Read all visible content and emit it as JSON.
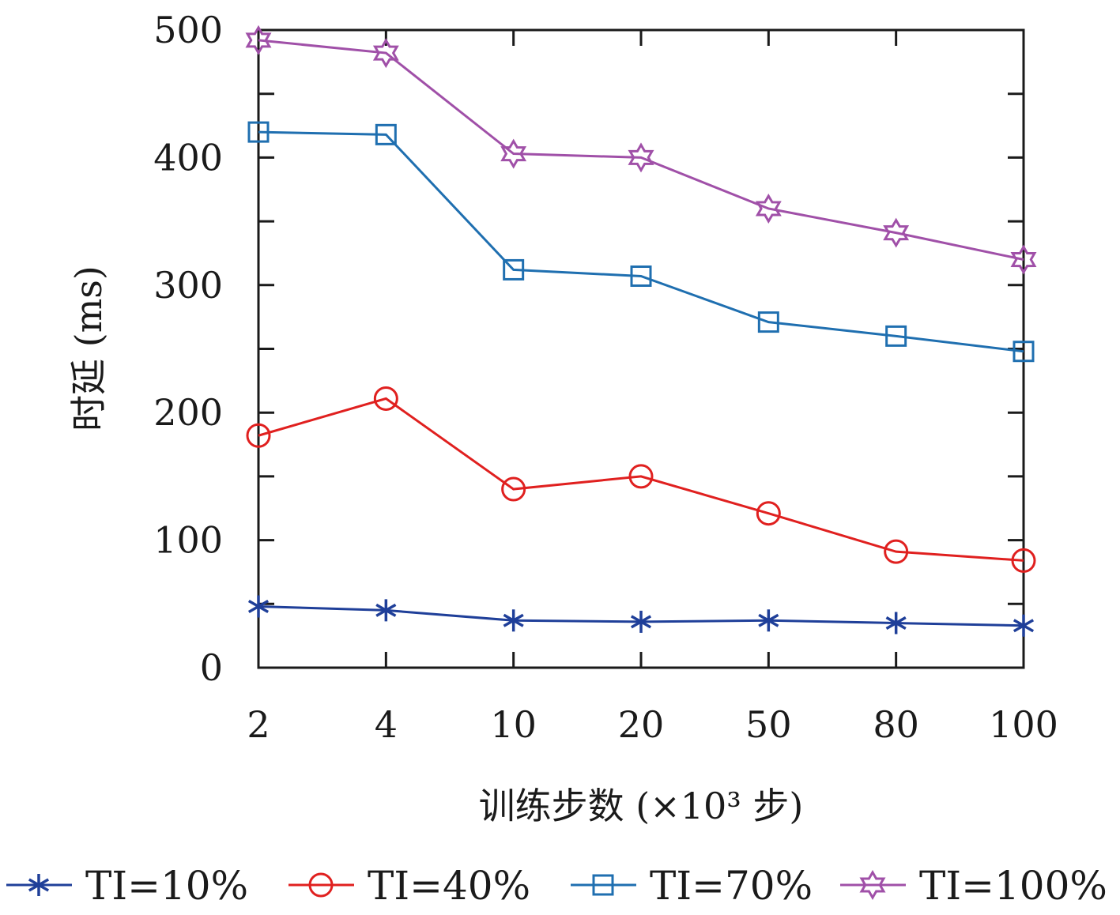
{
  "chart_data": {
    "type": "line",
    "xlabel": "训练步数 (×10³ 步)",
    "ylabel": "时延 (ms)",
    "categories": [
      "2",
      "4",
      "10",
      "20",
      "50",
      "80",
      "100"
    ],
    "ylim": [
      0,
      500
    ],
    "yticks": [
      0,
      100,
      200,
      300,
      400,
      500
    ],
    "grid": false,
    "legend_position": "bottom",
    "series": [
      {
        "name": "TI=10%",
        "marker": "asterisk",
        "color": "#1f3f99",
        "values": [
          48,
          45,
          37,
          36,
          37,
          35,
          33
        ]
      },
      {
        "name": "TI=40%",
        "marker": "circle",
        "color": "#e0201f",
        "values": [
          182,
          211,
          140,
          150,
          121,
          91,
          84
        ]
      },
      {
        "name": "TI=70%",
        "marker": "square",
        "color": "#1f6fb0",
        "values": [
          420,
          418,
          312,
          307,
          271,
          260,
          248
        ]
      },
      {
        "name": "TI=100%",
        "marker": "star",
        "color": "#a050a8",
        "values": [
          492,
          482,
          403,
          400,
          360,
          341,
          320
        ]
      }
    ]
  }
}
